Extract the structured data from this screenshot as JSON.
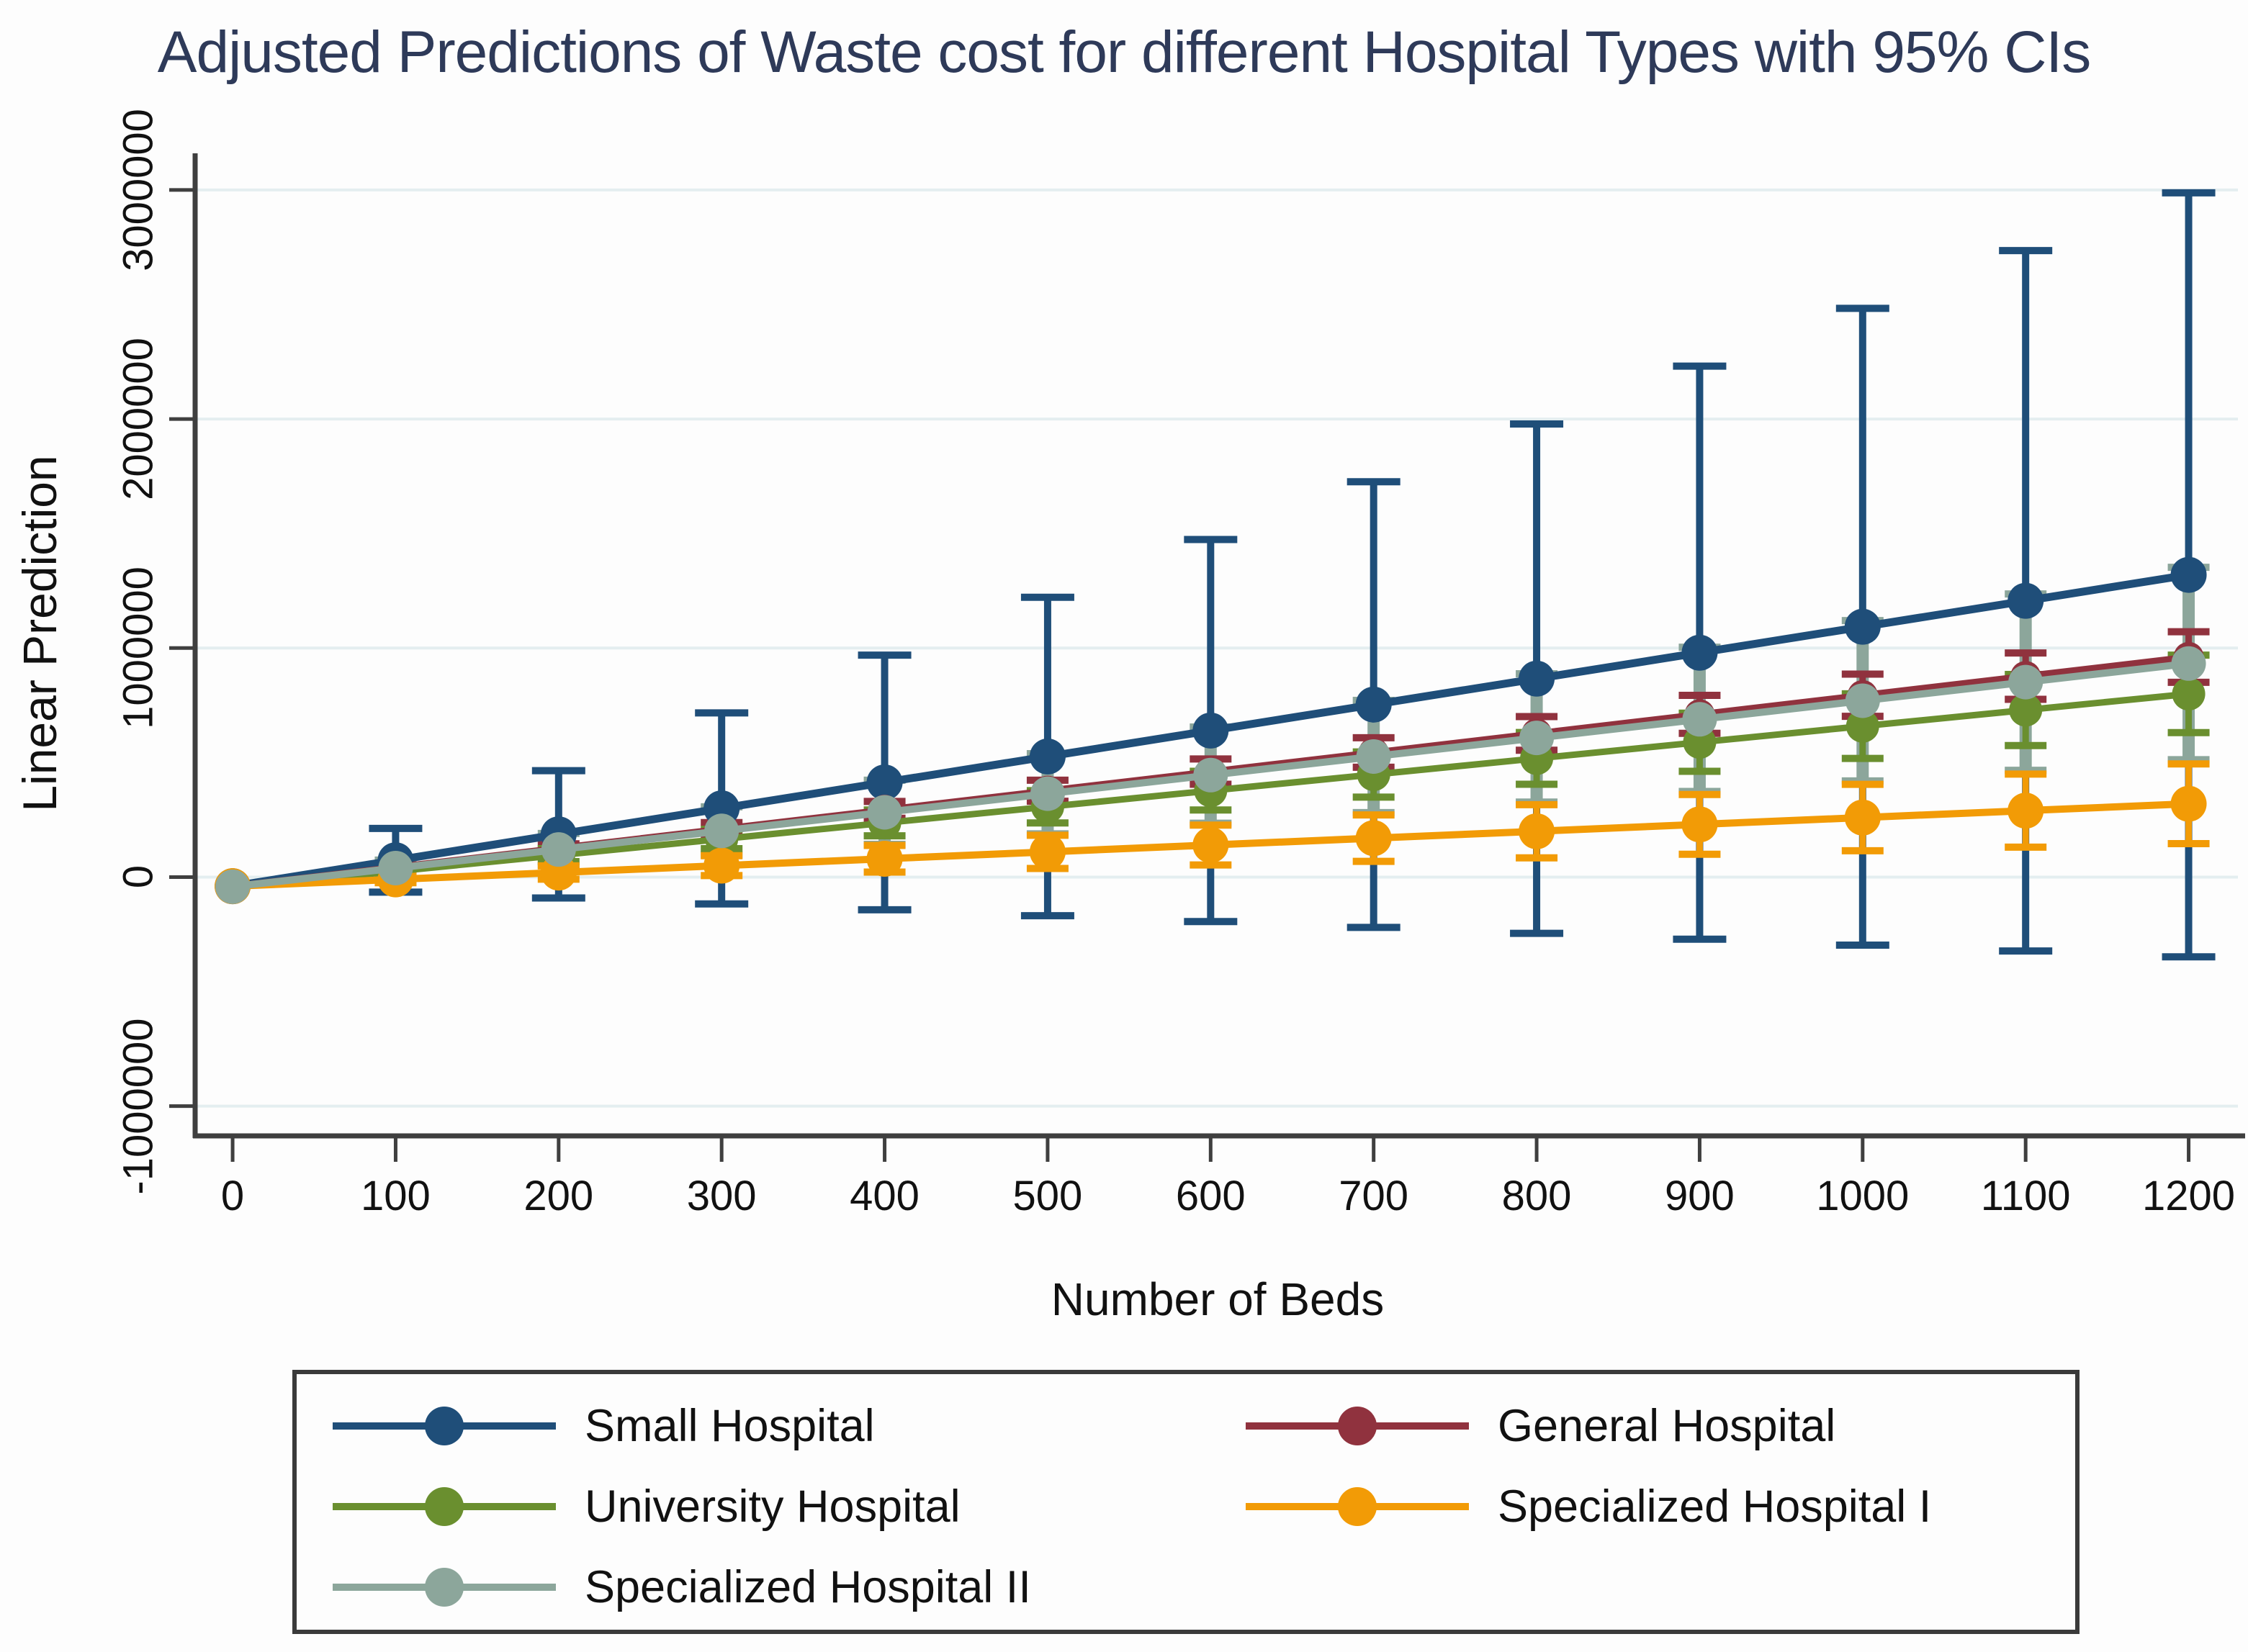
{
  "chart_data": {
    "type": "line",
    "title": "Adjusted Predictions of Waste cost for different Hospital Types with 95% CIs",
    "xlabel": "Number of Beds",
    "ylabel": "Linear Prediction",
    "ci_level": "95%",
    "grid": "horizontal",
    "legend_position": "bottom",
    "legend_columns": 2,
    "x": [
      0,
      100,
      200,
      300,
      400,
      500,
      600,
      700,
      800,
      900,
      1000,
      1100,
      1200
    ],
    "xlim": [
      -23,
      1232
    ],
    "ylim": [
      -1130000,
      3160000
    ],
    "y_ticks": [
      {
        "value": 3000000,
        "label": "3000000"
      },
      {
        "value": 2000000,
        "label": "2000000"
      },
      {
        "value": 1000000,
        "label": "1000000"
      },
      {
        "value": 0,
        "label": "0"
      },
      {
        "value": -1000000,
        "label": "-1000000"
      }
    ],
    "grid_color": "#e4eef0",
    "axis_color": "#3f3f3f",
    "title_color": "#2e3a59",
    "series": [
      {
        "name": "Small Hospital",
        "color": "#1f4e79",
        "mean": [
          -40000,
          73300,
          186600,
          299900,
          413200,
          526500,
          639800,
          753100,
          866400,
          979700,
          1093000,
          1206300,
          1319600
        ],
        "ci_lo": [
          -40000,
          -65700,
          -91400,
          -117100,
          -142800,
          -168500,
          -194200,
          -219900,
          -245600,
          -271300,
          -297000,
          -322700,
          -348400
        ],
        "ci_hi": [
          -40000,
          212300,
          464600,
          716900,
          969200,
          1221500,
          1473800,
          1726100,
          1978400,
          2230700,
          2483000,
          2735300,
          2987600
        ]
      },
      {
        "name": "General Hospital",
        "color": "#90323e",
        "mean": [
          -40000,
          43400,
          126800,
          210200,
          293600,
          377000,
          460400,
          543800,
          627200,
          710600,
          794000,
          877400,
          960800
        ],
        "ci_lo": [
          -40000,
          34200,
          108400,
          182600,
          256800,
          331000,
          405200,
          479400,
          553600,
          627800,
          702000,
          776200,
          850400
        ],
        "ci_hi": [
          -40000,
          52600,
          145200,
          237800,
          330400,
          423000,
          515600,
          608200,
          700800,
          793400,
          886000,
          978600,
          1071200
        ]
      },
      {
        "name": "University Hospital",
        "color": "#6a8f2f",
        "mean": [
          -45000,
          25400,
          95800,
          166200,
          236600,
          307000,
          377400,
          447800,
          518200,
          588600,
          659000,
          729400,
          799800
        ],
        "ci_lo": [
          -45000,
          11300,
          67600,
          123900,
          180200,
          236500,
          292800,
          349100,
          405400,
          461700,
          518000,
          574300,
          630600
        ],
        "ci_hi": [
          -45000,
          39500,
          124000,
          208500,
          293000,
          377500,
          462000,
          546500,
          631000,
          715500,
          800000,
          884500,
          969000
        ]
      },
      {
        "name": "Specialized Hospital I",
        "color": "#f29b06",
        "mean": [
          -40000,
          -10000,
          20000,
          50000,
          80000,
          110000,
          140000,
          170000,
          200000,
          230000,
          260000,
          290000,
          320000
        ],
        "ci_lo": [
          -40000,
          -24500,
          -9000,
          6500,
          22000,
          37500,
          53000,
          68500,
          84000,
          99500,
          115000,
          130500,
          146000
        ],
        "ci_hi": [
          -40000,
          4500,
          49000,
          93500,
          138000,
          182500,
          227000,
          271500,
          316000,
          360500,
          405000,
          449500,
          494000
        ]
      },
      {
        "name": "Specialized Hospital II",
        "color": "#8ca69b",
        "mean": [
          -42000,
          39200,
          120400,
          201600,
          282800,
          364000,
          445200,
          526400,
          607600,
          688800,
          770000,
          851200,
          932400
        ],
        "ci_lo": [
          -42000,
          4200,
          50400,
          96600,
          142800,
          189000,
          235200,
          281400,
          327600,
          373800,
          420000,
          466200,
          512400
        ],
        "ci_hi": [
          -42000,
          74200,
          190400,
          306600,
          422800,
          539000,
          655200,
          771400,
          887600,
          1003800,
          1120000,
          1236200,
          1352400
        ]
      }
    ]
  }
}
